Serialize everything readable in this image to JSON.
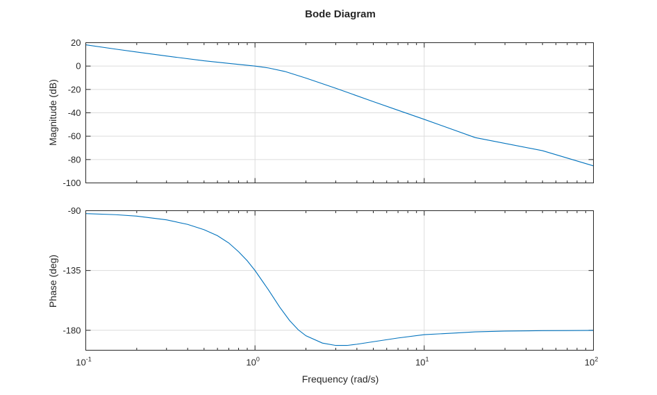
{
  "chart_data": [
    {
      "type": "line",
      "title": "Bode Diagram",
      "ylabel": "Magnitude (dB)",
      "xlabel": "",
      "xscale": "log",
      "xlim": [
        0.1,
        100
      ],
      "ylim": [
        -100,
        20
      ],
      "yticks": [
        "20",
        "0",
        "-20",
        "-40",
        "-60",
        "-80",
        "-100"
      ],
      "grid": true,
      "series": [
        {
          "color": "#0072BD",
          "x": [
            0.1,
            0.15,
            0.2,
            0.3,
            0.5,
            0.7,
            1.0,
            1.2,
            1.5,
            2.0,
            3.0,
            5.0,
            7.0,
            10,
            20,
            50,
            100
          ],
          "y": [
            18.2,
            14.5,
            12.0,
            8.6,
            4.5,
            2.3,
            0.0,
            -1.6,
            -4.6,
            -10.3,
            -19.0,
            -30.4,
            -37.8,
            -45.6,
            -61.2,
            -72.4,
            -85.4
          ]
        }
      ]
    },
    {
      "type": "line",
      "title": "",
      "ylabel": "Phase (deg)",
      "xlabel": "Frequency (rad/s)",
      "xscale": "log",
      "xlim": [
        0.1,
        100
      ],
      "ylim": [
        -195,
        -90
      ],
      "yticks": [
        "-90",
        "-135",
        "-180"
      ],
      "xticks": [
        {
          "base": "10",
          "exp": "-1"
        },
        {
          "base": "10",
          "exp": "0"
        },
        {
          "base": "10",
          "exp": "1"
        },
        {
          "base": "10",
          "exp": "2"
        }
      ],
      "grid": true,
      "series": [
        {
          "color": "#0072BD",
          "x": [
            0.1,
            0.15,
            0.2,
            0.3,
            0.4,
            0.5,
            0.6,
            0.7,
            0.8,
            0.9,
            1.0,
            1.2,
            1.4,
            1.6,
            1.8,
            2.0,
            2.5,
            3.0,
            3.5,
            4.0,
            5.0,
            7.0,
            10,
            15,
            20,
            30,
            50,
            70,
            100
          ],
          "y": [
            -92.2,
            -93.0,
            -94.1,
            -96.9,
            -100.3,
            -104.3,
            -108.8,
            -114.3,
            -120.9,
            -127.7,
            -135.0,
            -149.5,
            -162.6,
            -172.6,
            -179.6,
            -184.1,
            -189.6,
            -191.4,
            -191.4,
            -190.5,
            -188.6,
            -185.8,
            -183.3,
            -182.1,
            -181.2,
            -180.6,
            -180.3,
            -180.2,
            -180.1
          ]
        }
      ]
    }
  ]
}
